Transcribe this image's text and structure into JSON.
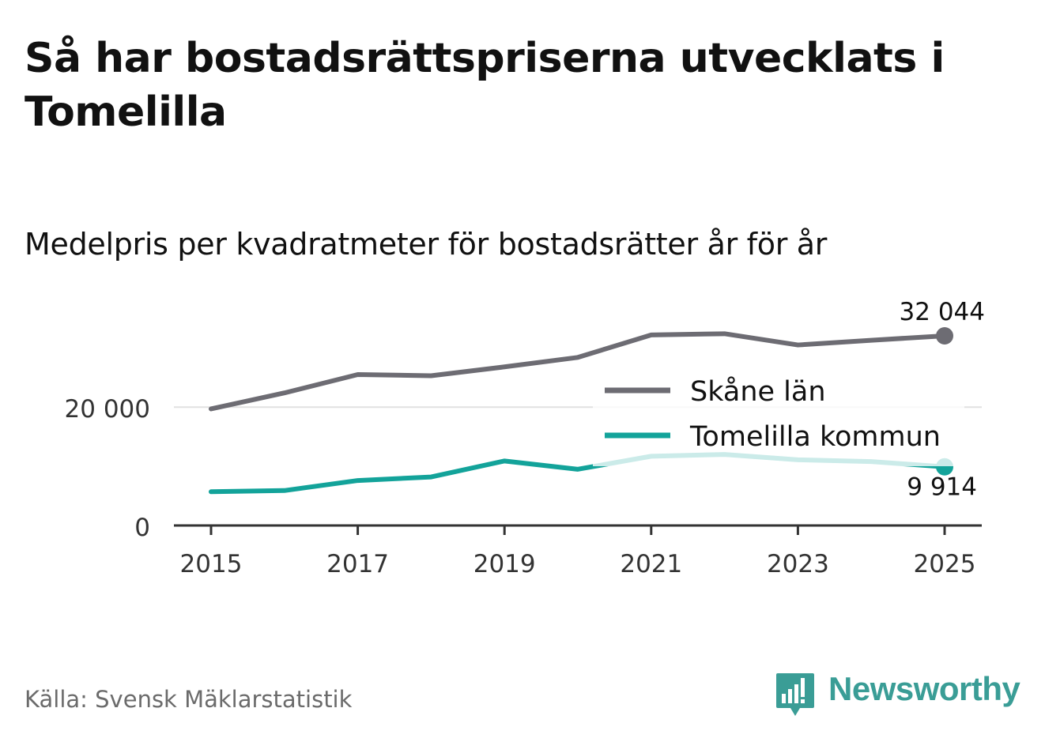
{
  "title": "Så har bostadsrättspriserna utvecklats i Tomelilla",
  "subtitle": "Medelpris per kvadratmeter för bostadsrätter år för år",
  "source": "Källa: Svensk Mäklarstatistik",
  "brand": "Newsworthy",
  "chart_data": {
    "type": "line",
    "x": [
      2015,
      2016,
      2017,
      2018,
      2019,
      2020,
      2021,
      2022,
      2023,
      2024,
      2025
    ],
    "series": [
      {
        "name": "Skåne län",
        "color": "#6d6c73",
        "values": [
          19700,
          22400,
          25500,
          25300,
          26800,
          28400,
          32200,
          32400,
          30500,
          31300,
          32044
        ],
        "end_label": "32 044"
      },
      {
        "name": "Tomelilla kommun",
        "color": "#13a39a",
        "values": [
          5700,
          5900,
          7600,
          8200,
          10900,
          9500,
          11700,
          12000,
          11100,
          10800,
          9914
        ],
        "end_label": "9 914"
      }
    ],
    "x_ticks": [
      "2015",
      "2017",
      "2019",
      "2021",
      "2023",
      "2025"
    ],
    "y_ticks": [
      {
        "value": 0,
        "label": "0"
      },
      {
        "value": 20000,
        "label": "20 000"
      }
    ],
    "xlim": [
      2015,
      2025
    ],
    "ylim": [
      0,
      32044
    ],
    "legend": "right-middle"
  }
}
